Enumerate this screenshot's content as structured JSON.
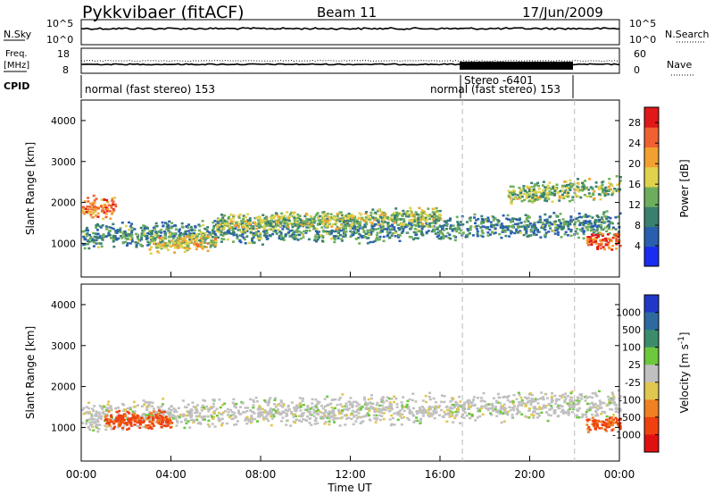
{
  "header": {
    "station": "Pykkvibaer (fitACF)",
    "beam": "Beam 11",
    "date": "17/Jun/2009"
  },
  "summary_panels": {
    "left_labels": {
      "nsky": "N.Sky",
      "freq_top": "Freq.",
      "freq_unit": "[MHz]",
      "cpid": "CPID"
    },
    "right_labels": {
      "nsearch": "N.Search",
      "nave": "Nave"
    },
    "noise_ticks_left": [
      "10^5",
      "10^0"
    ],
    "noise_ticks_right": [
      "10^5",
      "10^0"
    ],
    "freq_ticks_left": [
      "18",
      "8"
    ],
    "nave_ticks_right": [
      "60",
      "0"
    ],
    "cpid_segments": [
      {
        "label": "normal (fast stereo) 153",
        "start_h": 0,
        "end_h": 17
      },
      {
        "label": "Stereo -6401",
        "start_h": 17,
        "end_h": 22
      },
      {
        "label": "normal (fast stereo) 153",
        "start_h": 22,
        "end_h": 24
      }
    ]
  },
  "chart_data": [
    {
      "type": "heatmap",
      "name": "power",
      "ylabel": "Slant Range [km]",
      "xlabel": "",
      "xlim": [
        0,
        24
      ],
      "ylim": [
        180,
        4500
      ],
      "x_ticks": [
        "00:00",
        "04:00",
        "08:00",
        "12:00",
        "16:00",
        "20:00",
        "00:00"
      ],
      "y_ticks": [
        1000,
        2000,
        3000,
        4000
      ],
      "colorbar": {
        "label": "Power [dB]",
        "ticks": [
          4,
          8,
          12,
          16,
          20,
          24,
          28
        ],
        "range": [
          0,
          31
        ],
        "colors": [
          "#1a2cf0",
          "#2a5fb0",
          "#3a8070",
          "#6cae5c",
          "#e0d24c",
          "#f2a030",
          "#f06030",
          "#e01818"
        ]
      },
      "scatter_bands": [
        {
          "x": [
            0,
            24
          ],
          "center_km": [
            1200,
            1500
          ],
          "spread_km": 350,
          "level": 10
        },
        {
          "x": [
            0,
            1.5
          ],
          "center_km": [
            1900,
            1900
          ],
          "spread_km": 300,
          "level": 24
        },
        {
          "x": [
            3,
            6
          ],
          "center_km": [
            1000,
            1100
          ],
          "spread_km": 250,
          "level": 18
        },
        {
          "x": [
            6,
            16
          ],
          "center_km": [
            1500,
            1700
          ],
          "spread_km": 250,
          "level": 15
        },
        {
          "x": [
            19,
            24
          ],
          "center_km": [
            2200,
            2400
          ],
          "spread_km": 300,
          "level": 14
        },
        {
          "x": [
            22.5,
            24
          ],
          "center_km": [
            1100,
            1100
          ],
          "spread_km": 250,
          "level": 26
        }
      ]
    },
    {
      "type": "heatmap",
      "name": "velocity",
      "ylabel": "Slant Range [km]",
      "xlabel": "Time UT",
      "xlim": [
        0,
        24
      ],
      "ylim": [
        180,
        4500
      ],
      "x_ticks": [
        "00:00",
        "04:00",
        "08:00",
        "12:00",
        "16:00",
        "20:00",
        "00:00"
      ],
      "y_ticks": [
        1000,
        2000,
        3000,
        4000
      ],
      "colorbar": {
        "label": "Velocity [m s^-1]",
        "ticks": [
          "1000",
          "500",
          "100",
          "25",
          "-25",
          "-100",
          "-500",
          "-1000"
        ],
        "colors": [
          "#2038c8",
          "#2e6aa0",
          "#3c8c6c",
          "#6cc83c",
          "#c0c0c0",
          "#e0c850",
          "#f08020",
          "#f04010",
          "#e01010"
        ]
      },
      "scatter_bands": [
        {
          "x": [
            0,
            24
          ],
          "center_km": [
            1300,
            1600
          ],
          "spread_km": 400,
          "class": "ground"
        },
        {
          "x": [
            1,
            4
          ],
          "center_km": [
            1200,
            1200
          ],
          "spread_km": 250,
          "class": "negative"
        },
        {
          "x": [
            22.5,
            24
          ],
          "center_km": [
            1100,
            1100
          ],
          "spread_km": 200,
          "class": "negative"
        }
      ]
    }
  ],
  "series_markers": {
    "dashed_lines_h": [
      17,
      22
    ]
  }
}
